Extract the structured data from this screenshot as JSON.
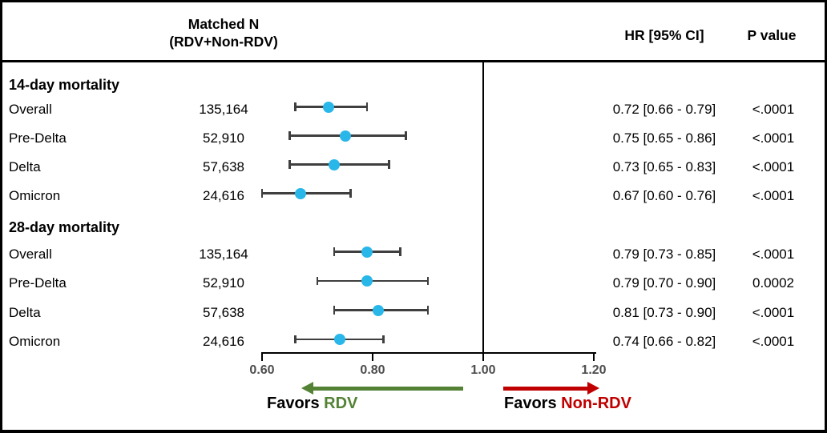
{
  "header": {
    "matched_n_line1": "Matched N",
    "matched_n_line2": "(RDV+Non-RDV)",
    "hr_col": "HR [95% CI]",
    "p_col": "P value"
  },
  "footer": {
    "favors_left_prefix": "Favors",
    "favors_left_target": "RDV",
    "favors_right_prefix": "Favors",
    "favors_right_target": "Non-RDV"
  },
  "colors": {
    "marker": "#29B7E9",
    "ci_bar": "#3F3F3F",
    "favors_rdv_green": "#548235",
    "favors_non_rdv_red": "#C00000",
    "tick_label_gray": "#4D4D4D",
    "axis_black": "#000000"
  },
  "chart_data": {
    "type": "forest",
    "title": "",
    "xlabel": "",
    "x_axis": {
      "ticks": [
        "0.60",
        "0.80",
        "1.00",
        "1.20"
      ],
      "tick_values": [
        0.6,
        0.8,
        1.0,
        1.2
      ],
      "range": [
        0.6,
        1.2
      ],
      "reference_line": 1.0,
      "grid": false
    },
    "columns": [
      "Matched N (RDV+Non-RDV)",
      "HR [95% CI]",
      "P value"
    ],
    "sections": [
      {
        "header": "14-day mortality",
        "rows": [
          {
            "label": "Overall",
            "matched_n": "135,164",
            "hr": 0.72,
            "ci_low": 0.66,
            "ci_high": 0.79,
            "hr_ci_text": "0.72 [0.66 - 0.79]",
            "p_value": "<.0001"
          },
          {
            "label": "Pre-Delta",
            "matched_n": "52,910",
            "hr": 0.75,
            "ci_low": 0.65,
            "ci_high": 0.86,
            "hr_ci_text": "0.75 [0.65 - 0.86]",
            "p_value": "<.0001"
          },
          {
            "label": "Delta",
            "matched_n": "57,638",
            "hr": 0.73,
            "ci_low": 0.65,
            "ci_high": 0.83,
            "hr_ci_text": "0.73 [0.65 - 0.83]",
            "p_value": "<.0001"
          },
          {
            "label": "Omicron",
            "matched_n": "24,616",
            "hr": 0.67,
            "ci_low": 0.6,
            "ci_high": 0.76,
            "hr_ci_text": "0.67 [0.60 - 0.76]",
            "p_value": "<.0001"
          }
        ]
      },
      {
        "header": "28-day mortality",
        "rows": [
          {
            "label": "Overall",
            "matched_n": "135,164",
            "hr": 0.79,
            "ci_low": 0.73,
            "ci_high": 0.85,
            "hr_ci_text": "0.79 [0.73 - 0.85]",
            "p_value": "<.0001"
          },
          {
            "label": "Pre-Delta",
            "matched_n": "52,910",
            "hr": 0.79,
            "ci_low": 0.7,
            "ci_high": 0.9,
            "hr_ci_text": "0.79 [0.70 - 0.90]",
            "p_value": "0.0002"
          },
          {
            "label": "Delta",
            "matched_n": "57,638",
            "hr": 0.81,
            "ci_low": 0.73,
            "ci_high": 0.9,
            "hr_ci_text": "0.81 [0.73 - 0.90]",
            "p_value": "<.0001"
          },
          {
            "label": "Omicron",
            "matched_n": "24,616",
            "hr": 0.74,
            "ci_low": 0.66,
            "ci_high": 0.82,
            "hr_ci_text": "0.74 [0.66 - 0.82]",
            "p_value": "<.0001"
          }
        ]
      }
    ],
    "annotations": {
      "favors_left": "Favors RDV",
      "favors_right": "Favors Non-RDV"
    },
    "legend": null
  }
}
